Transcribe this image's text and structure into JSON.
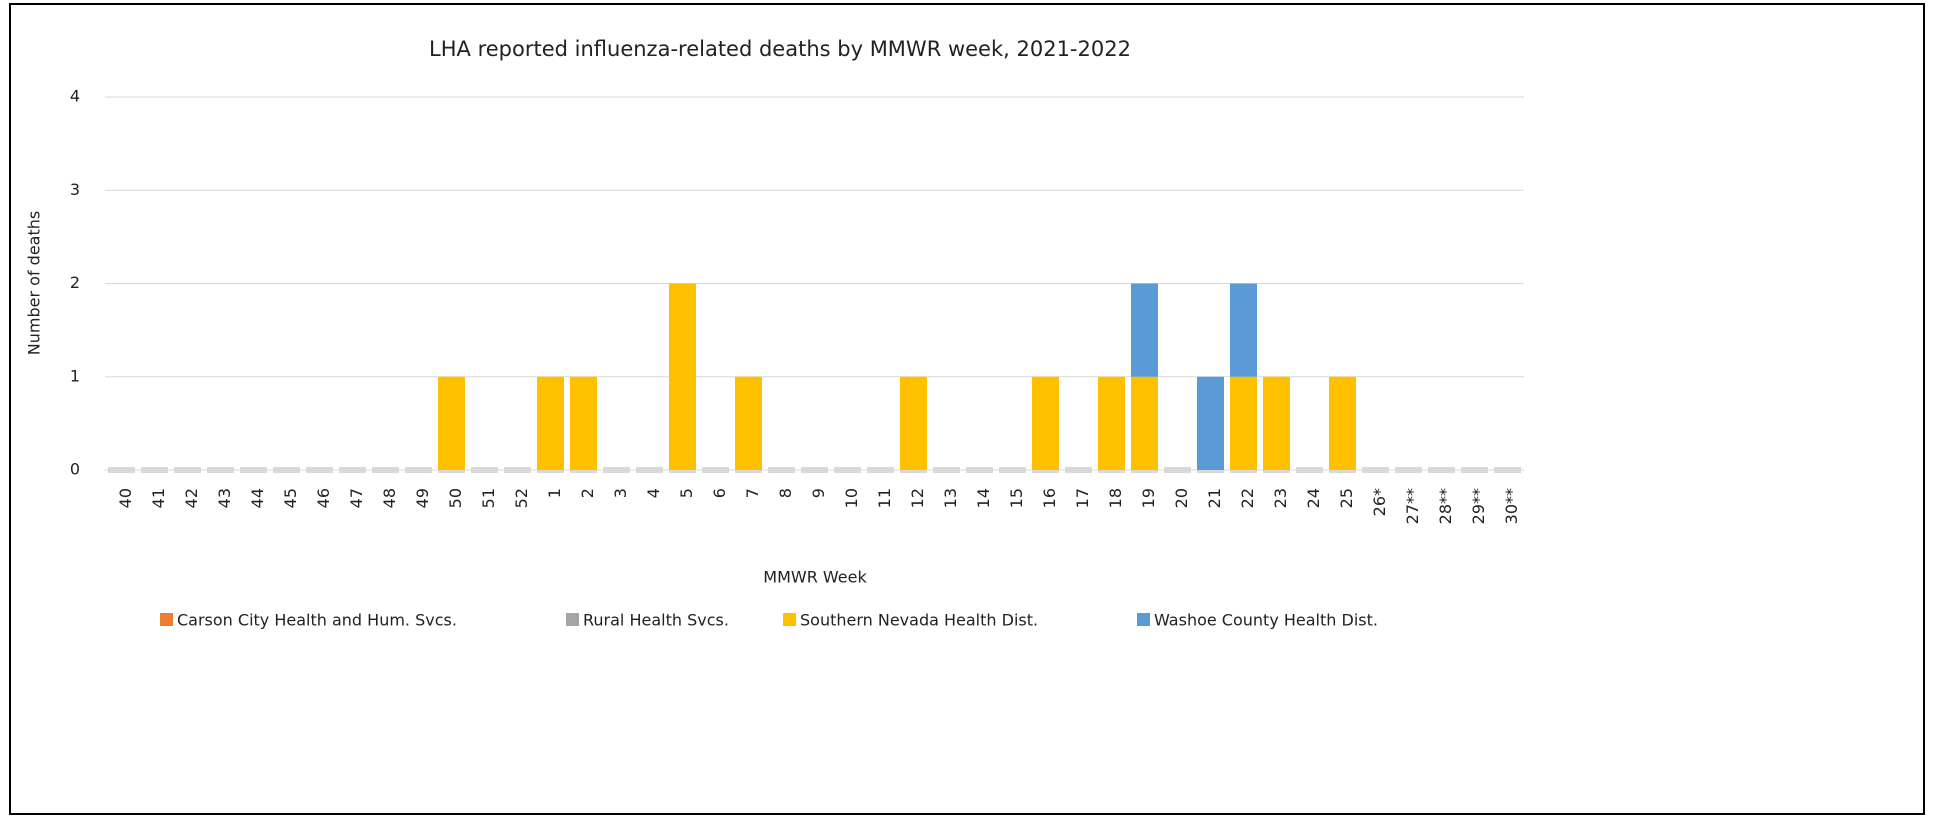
{
  "chart_data": {
    "type": "stacked-bar",
    "title": "LHA reported influenza-related deaths by MMWR week, 2021-2022",
    "x_label": "MMWR Week",
    "y_label": "Number of deaths",
    "categories": [
      "40",
      "41",
      "42",
      "43",
      "44",
      "45",
      "46",
      "47",
      "48",
      "49",
      "50",
      "51",
      "52",
      "1",
      "2",
      "3",
      "4",
      "5",
      "6",
      "7",
      "8",
      "9",
      "10",
      "11",
      "12",
      "13",
      "14",
      "15",
      "16",
      "17",
      "18",
      "19",
      "20",
      "21",
      "22",
      "23",
      "24",
      "25",
      "26*",
      "27**",
      "28**",
      "29**",
      "30**"
    ],
    "series": [
      {
        "name": "Carson City Health and Hum. Svcs.",
        "color": "#ed7d31",
        "values": [
          0,
          0,
          0,
          0,
          0,
          0,
          0,
          0,
          0,
          0,
          0,
          0,
          0,
          0,
          0,
          0,
          0,
          0,
          0,
          0,
          0,
          0,
          0,
          0,
          0,
          0,
          0,
          0,
          0,
          0,
          0,
          0,
          0,
          0,
          0,
          0,
          0,
          0,
          0,
          0,
          0,
          0,
          0
        ]
      },
      {
        "name": "Rural Health Svcs.",
        "color": "#a5a5a5",
        "values": [
          0,
          0,
          0,
          0,
          0,
          0,
          0,
          0,
          0,
          0,
          0,
          0,
          0,
          0,
          0,
          0,
          0,
          0,
          0,
          0,
          0,
          0,
          0,
          0,
          0,
          0,
          0,
          0,
          0,
          0,
          0,
          0,
          0,
          0,
          0,
          0,
          0,
          0,
          0,
          0,
          0,
          0,
          0
        ]
      },
      {
        "name": "Southern Nevada Health Dist.",
        "color": "#ffc000",
        "values": [
          0,
          0,
          0,
          0,
          0,
          0,
          0,
          0,
          0,
          0,
          1,
          0,
          0,
          1,
          1,
          0,
          0,
          2,
          0,
          1,
          0,
          0,
          0,
          0,
          1,
          0,
          0,
          0,
          1,
          0,
          1,
          1,
          0,
          0,
          1,
          1,
          0,
          1,
          0,
          0,
          0,
          0,
          0
        ]
      },
      {
        "name": "Washoe County Health Dist.",
        "color": "#5b9bd5",
        "values": [
          0,
          0,
          0,
          0,
          0,
          0,
          0,
          0,
          0,
          0,
          0,
          0,
          0,
          0,
          0,
          0,
          0,
          0,
          0,
          0,
          0,
          0,
          0,
          0,
          0,
          0,
          0,
          0,
          0,
          0,
          0,
          1,
          0,
          1,
          1,
          0,
          0,
          0,
          0,
          0,
          0,
          0,
          0
        ]
      }
    ],
    "ylim": [
      0,
      4
    ],
    "yticks": [
      0,
      1,
      2,
      3,
      4
    ],
    "grid": true
  }
}
